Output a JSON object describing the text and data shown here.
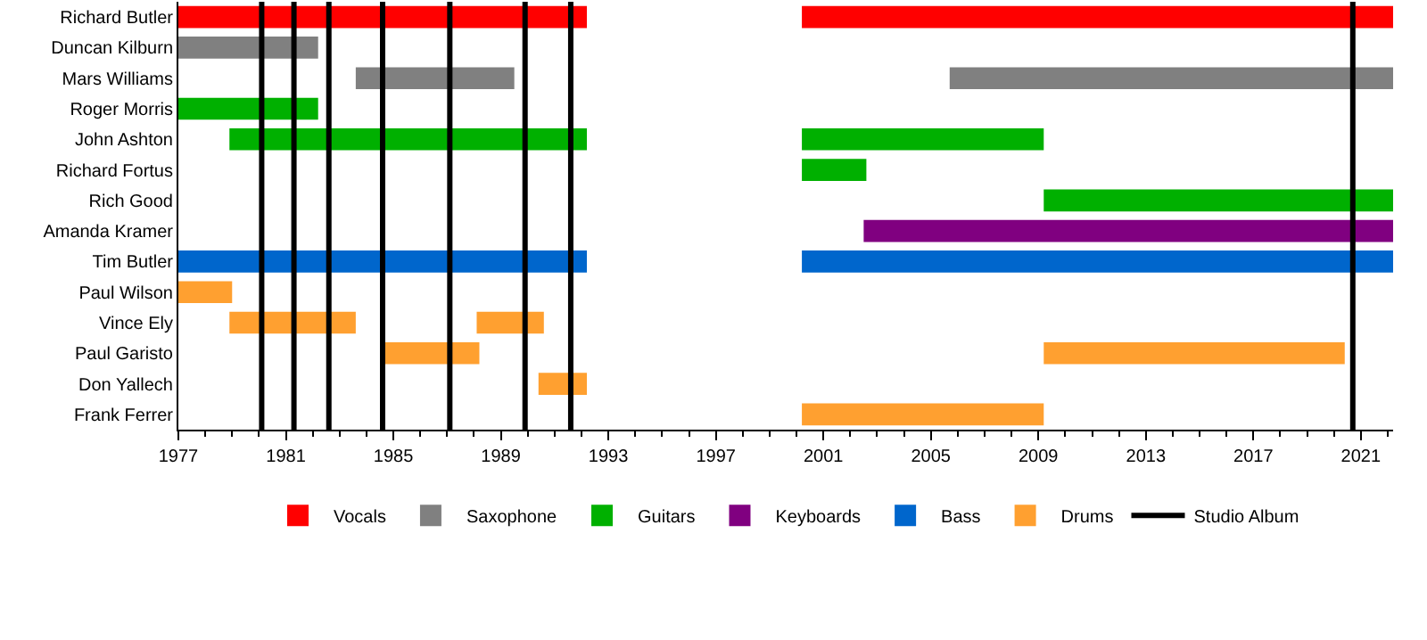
{
  "chart_data": {
    "type": "bar",
    "orientation": "horizontal",
    "categories": [
      "Richard Butler",
      "Duncan Kilburn",
      "Mars Williams",
      "Roger Morris",
      "John Ashton",
      "Richard Fortus",
      "Rich Good",
      "Amanda Kramer",
      "Tim Butler",
      "Paul Wilson",
      "Vince Ely",
      "Paul Garisto",
      "Don Yallech",
      "Frank Ferrer"
    ],
    "series": [
      {
        "name": "Vocals",
        "color": "#ff0000",
        "base": [
          1977,
          null,
          null,
          null,
          null,
          null,
          null,
          null,
          null,
          null,
          null,
          null,
          null,
          null
        ],
        "values": [
          15.2,
          null,
          null,
          null,
          null,
          null,
          null,
          null,
          null,
          null,
          null,
          null,
          null,
          null
        ]
      },
      {
        "color": "#ff0000",
        "base": [
          2000.2,
          null,
          null,
          null,
          null,
          null,
          null,
          null,
          null,
          null,
          null,
          null,
          null,
          null
        ],
        "values": [
          22,
          null,
          null,
          null,
          null,
          null,
          null,
          null,
          null,
          null,
          null,
          null,
          null,
          null
        ]
      },
      {
        "name": "Saxophone",
        "color": "#808080",
        "base": [
          null,
          1977,
          1983.6,
          null,
          null,
          null,
          null,
          null,
          null,
          null,
          null,
          null,
          null,
          null
        ],
        "values": [
          null,
          5.2,
          5.9,
          null,
          null,
          null,
          null,
          null,
          null,
          null,
          null,
          null,
          null,
          null
        ]
      },
      {
        "color": "#808080",
        "base": [
          null,
          null,
          2005.7,
          null,
          null,
          null,
          null,
          null,
          null,
          null,
          null,
          null,
          null,
          null
        ],
        "values": [
          null,
          null,
          16.5,
          null,
          null,
          null,
          null,
          null,
          null,
          null,
          null,
          null,
          null,
          null
        ]
      },
      {
        "name": "Guitars",
        "color": "#00b000",
        "base": [
          null,
          null,
          null,
          1977,
          1978.9,
          null,
          null,
          null,
          null,
          null,
          null,
          null,
          null,
          null
        ],
        "values": [
          null,
          null,
          null,
          5.2,
          13.3,
          null,
          null,
          null,
          null,
          null,
          null,
          null,
          null,
          null
        ]
      },
      {
        "color": "#00b000",
        "base": [
          null,
          null,
          null,
          null,
          2000.2,
          2000.2,
          2009.2,
          null,
          null,
          null,
          null,
          null,
          null,
          null
        ],
        "values": [
          null,
          null,
          null,
          null,
          9,
          2.4,
          13,
          null,
          null,
          null,
          null,
          null,
          null,
          null
        ]
      },
      {
        "name": "Keyboards",
        "color": "#800080",
        "base": [
          null,
          null,
          null,
          null,
          null,
          null,
          null,
          2002.5,
          null,
          null,
          null,
          null,
          null,
          null
        ],
        "values": [
          null,
          null,
          null,
          null,
          null,
          null,
          null,
          19.7,
          null,
          null,
          null,
          null,
          null,
          null
        ]
      },
      {
        "name": "Bass",
        "color": "#0066cc",
        "base": [
          null,
          null,
          null,
          null,
          null,
          null,
          null,
          null,
          1977,
          null,
          null,
          null,
          null,
          null
        ],
        "values": [
          null,
          null,
          null,
          null,
          null,
          null,
          null,
          null,
          15.2,
          null,
          null,
          null,
          null,
          null
        ]
      },
      {
        "color": "#0066cc",
        "base": [
          null,
          null,
          null,
          null,
          null,
          null,
          null,
          null,
          2000.2,
          null,
          null,
          null,
          null,
          null
        ],
        "values": [
          null,
          null,
          null,
          null,
          null,
          null,
          null,
          null,
          22,
          null,
          null,
          null,
          null,
          null
        ]
      },
      {
        "name": "Drums",
        "color": "#ffa030",
        "base": [
          null,
          null,
          null,
          null,
          null,
          null,
          null,
          null,
          null,
          1977,
          1978.9,
          1984.6,
          1990.4,
          2000.2
        ],
        "values": [
          null,
          null,
          null,
          null,
          null,
          null,
          null,
          null,
          null,
          2,
          4.7,
          3.6,
          1.8,
          9
        ]
      },
      {
        "color": "#ffa030",
        "base": [
          null,
          null,
          null,
          null,
          null,
          null,
          null,
          null,
          null,
          null,
          1988.1,
          2009.2,
          null,
          null
        ],
        "values": [
          null,
          null,
          null,
          null,
          null,
          null,
          null,
          null,
          null,
          null,
          2.5,
          11.2,
          null,
          null
        ]
      }
    ],
    "ref_lines": [
      {
        "axis": "x",
        "value": 1980.1,
        "label": "Studio Album",
        "color": "#000000"
      },
      {
        "axis": "x",
        "value": 1981.3,
        "color": "#000000"
      },
      {
        "axis": "x",
        "value": 1982.6,
        "color": "#000000"
      },
      {
        "axis": "x",
        "value": 1984.6,
        "color": "#000000"
      },
      {
        "axis": "x",
        "value": 1987.1,
        "color": "#000000"
      },
      {
        "axis": "x",
        "value": 1989.9,
        "color": "#000000"
      },
      {
        "axis": "x",
        "value": 1991.6,
        "color": "#000000"
      },
      {
        "axis": "x",
        "value": 2020.7,
        "color": "#000000"
      }
    ],
    "xlim": [
      1977,
      2022.2
    ],
    "xticks": [
      1977,
      1981,
      1985,
      1989,
      1993,
      1997,
      2001,
      2005,
      2009,
      2013,
      2017,
      2021
    ],
    "grid": false,
    "legend": "bottom"
  }
}
